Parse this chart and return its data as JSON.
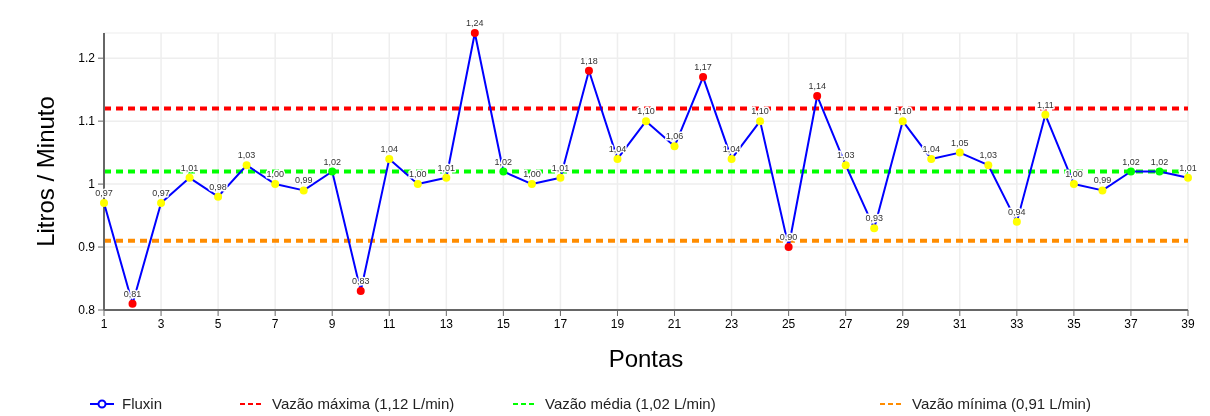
{
  "chart_data": {
    "type": "line",
    "xlabel": "Pontas",
    "ylabel": "Litros / Minuto",
    "x": [
      1,
      2,
      3,
      4,
      5,
      6,
      7,
      8,
      9,
      10,
      11,
      12,
      13,
      14,
      15,
      16,
      17,
      18,
      19,
      20,
      21,
      22,
      23,
      24,
      25,
      26,
      27,
      28,
      29,
      30,
      31,
      32,
      33,
      34,
      35,
      36,
      37,
      38,
      39
    ],
    "xlim": [
      1,
      39
    ],
    "xticks": [
      1,
      3,
      5,
      7,
      9,
      11,
      13,
      15,
      17,
      19,
      21,
      23,
      25,
      27,
      29,
      31,
      33,
      35,
      37,
      39
    ],
    "ylim": [
      0.8,
      1.24
    ],
    "yticks": [
      0.8,
      0.9,
      1,
      1.1,
      1.2
    ],
    "grid": true,
    "legend": "bottom",
    "marker": "circle",
    "line_style": "solid",
    "series": [
      {
        "name": "Fluxin",
        "color": "#0000ff",
        "values": [
          0.97,
          0.81,
          0.97,
          1.01,
          0.98,
          1.03,
          1.0,
          0.99,
          1.02,
          0.83,
          1.04,
          1.0,
          1.01,
          1.24,
          1.02,
          1.0,
          1.01,
          1.18,
          1.04,
          1.1,
          1.06,
          1.17,
          1.04,
          1.1,
          0.9,
          1.14,
          1.03,
          0.93,
          1.1,
          1.04,
          1.05,
          1.03,
          0.94,
          1.11,
          1.0,
          0.99,
          1.02,
          1.02,
          1.01
        ],
        "colors": [
          "#ffff00",
          "#ff0000",
          "#ffff00",
          "#ffff00",
          "#ffff00",
          "#ffff00",
          "#ffff00",
          "#ffff00",
          "#00ff00",
          "#ff0000",
          "#ffff00",
          "#ffff00",
          "#ffff00",
          "#ff0000",
          "#00ff00",
          "#ffff00",
          "#ffff00",
          "#ff0000",
          "#ffff00",
          "#ffff00",
          "#ffff00",
          "#ff0000",
          "#ffff00",
          "#ffff00",
          "#ff0000",
          "#ff0000",
          "#ffff00",
          "#ffff00",
          "#ffff00",
          "#ffff00",
          "#ffff00",
          "#ffff00",
          "#ffff00",
          "#ffff00",
          "#ffff00",
          "#ffff00",
          "#00ff00",
          "#00ff00",
          "#ffff00"
        ],
        "value_labels": [
          "0,97",
          "0,81",
          "0,97",
          "1,01",
          "0,98",
          "1,03",
          "1,00",
          "0,99",
          "1,02",
          "0,83",
          "1,04",
          "1,00",
          "1,01",
          "1,24",
          "1,02",
          "1,00",
          "1,01",
          "1,18",
          "1,04",
          "1,10",
          "1,06",
          "1,17",
          "1,04",
          "1,10",
          "0,90",
          "1,14",
          "1,03",
          "0,93",
          "1,10",
          "1,04",
          "1,05",
          "1,03",
          "0,94",
          "1,11",
          "1,00",
          "0,99",
          "1,02",
          "1,02",
          "1,01"
        ]
      }
    ],
    "ref_lines": [
      {
        "axis": "y",
        "value": 1.12,
        "label": "Vazão máxima (1,12 L/min)",
        "color": "#ff0000",
        "line_style": "dashed"
      },
      {
        "axis": "y",
        "value": 1.02,
        "label": "Vazão média (1,02 L/min)",
        "color": "#00ff00",
        "line_style": "dashed"
      },
      {
        "axis": "y",
        "value": 0.91,
        "label": "Vazão mínima (0,91 L/min)",
        "color": "#ff8c00",
        "line_style": "dashed"
      }
    ]
  }
}
